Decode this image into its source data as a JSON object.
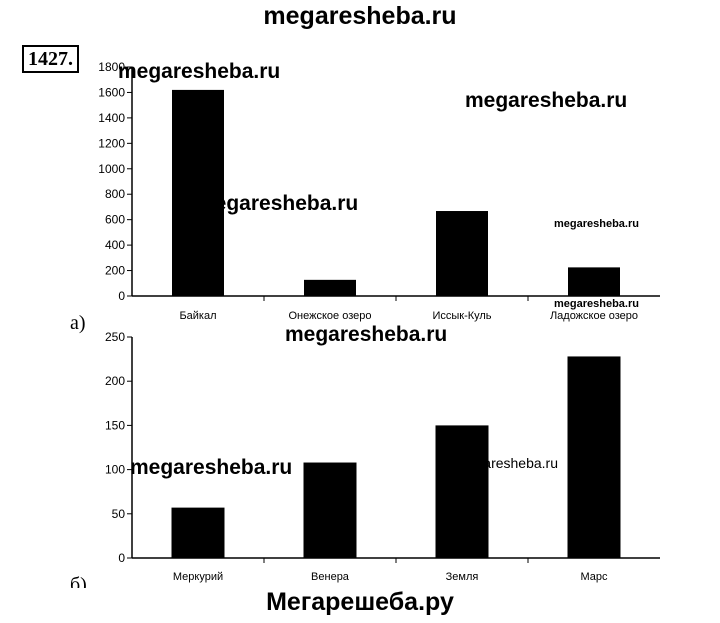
{
  "header": {
    "site": "megaresheba.ru"
  },
  "problem": {
    "number": "1427."
  },
  "footer": {
    "site": "Мегарешеба.ру"
  },
  "watermarks": [
    "megaresheba.ru",
    "megaresheba.ru",
    "megaresheba.ru",
    "megaresheba.ru",
    "megaresheba.ru",
    "megaresheba.ru",
    "megaresheba.ru",
    "megaresheba.ru"
  ],
  "chart_data": [
    {
      "type": "bar",
      "letter": "а)",
      "categories": [
        "Байкал",
        "Онежское озеро",
        "Иссык-Куль",
        "Ладожское озеро"
      ],
      "values": [
        1620,
        127,
        668,
        225
      ],
      "ylim": [
        0,
        1800
      ],
      "yticks": [
        0,
        200,
        400,
        600,
        800,
        1000,
        1200,
        1400,
        1600,
        1800
      ],
      "grid": false,
      "bar_color": "#000000"
    },
    {
      "type": "bar",
      "letter": "б)",
      "categories": [
        "Меркурий",
        "Венера",
        "Земля",
        "Марс"
      ],
      "values": [
        57,
        108,
        150,
        228
      ],
      "ylim": [
        0,
        250
      ],
      "yticks": [
        0,
        50,
        100,
        150,
        200,
        250
      ],
      "grid": false,
      "bar_color": "#000000"
    }
  ]
}
